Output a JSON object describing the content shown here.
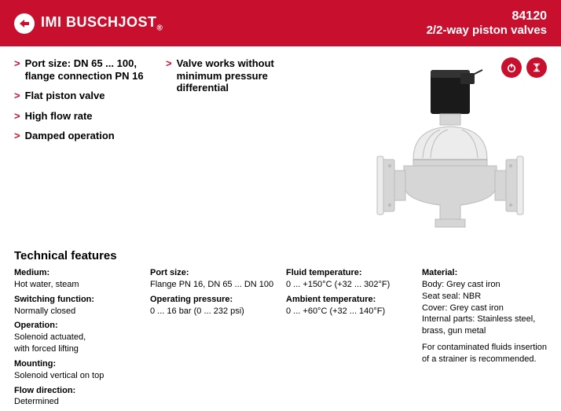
{
  "colors": {
    "accent": "#c8102e",
    "white": "#ffffff",
    "black": "#000000",
    "valve_body": "#d6d6d6",
    "valve_body_dk": "#bcbcbc",
    "valve_body_lt": "#ececec",
    "valve_cap": "#1a1a1a"
  },
  "header": {
    "brand": "IMI BUSCHJOST",
    "model": "84120",
    "subtitle": "2/2-way piston valves"
  },
  "features_left": [
    "Port size: DN 65 ... 100, flange connection PN 16",
    "Flat piston valve",
    "High flow rate",
    "Damped operation"
  ],
  "features_mid": [
    "Valve works without minimum pressure differential"
  ],
  "badges": [
    {
      "name": "power-icon"
    },
    {
      "name": "height-icon"
    }
  ],
  "tech_title": "Technical features",
  "tech": {
    "col1": [
      {
        "label": "Medium:",
        "value": "Hot water, steam"
      },
      {
        "label": "Switching function:",
        "value": "Normally closed"
      },
      {
        "label": "Operation:",
        "value": "Solenoid actuated,\nwith forced lifting"
      },
      {
        "label": "Mounting:",
        "value": "Solenoid vertical on top"
      },
      {
        "label": "Flow direction:",
        "value": "Determined"
      }
    ],
    "col2": [
      {
        "label": "Port size:",
        "value": "Flange PN 16, DN 65 ... DN 100"
      },
      {
        "label": "Operating pressure:",
        "value": "0 ... 16 bar (0 ... 232 psi)"
      }
    ],
    "col3": [
      {
        "label": "Fluid temperature:",
        "value": "0 ... +150°C (+32 ... 302°F)"
      },
      {
        "label": "Ambient temperature:",
        "value": "0 ... +60°C (+32 ... 140°F)"
      }
    ],
    "col4": [
      {
        "label": "Material:",
        "value": "Body: Grey cast iron\nSeat seal: NBR\nCover: Grey cast iron\nInternal parts: Stainless steel, brass, gun metal"
      }
    ],
    "note": "For contaminated fluids insertion of a strainer is recommended."
  }
}
